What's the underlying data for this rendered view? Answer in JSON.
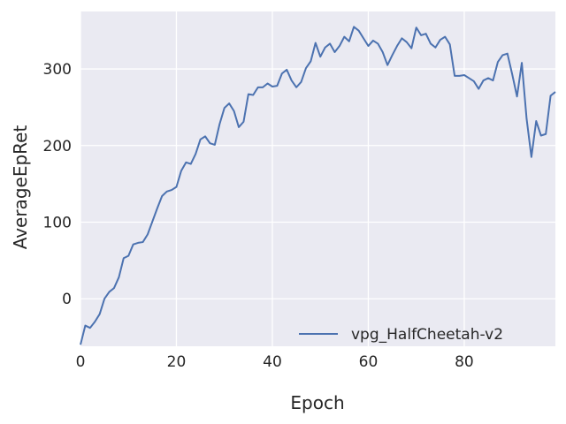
{
  "chart_data": {
    "type": "line",
    "xlabel": "Epoch",
    "ylabel": "AverageEpRet",
    "xlim": [
      0,
      99
    ],
    "ylim": [
      -62,
      375
    ],
    "x_ticks": [
      0,
      20,
      40,
      60,
      80
    ],
    "y_ticks": [
      0,
      100,
      200,
      300
    ],
    "grid": true,
    "background": "#eaeaf2",
    "legend_position": "lower-right",
    "series": [
      {
        "name": "vpg_HalfCheetah-v2",
        "color": "#4c72b0",
        "x": [
          0,
          1,
          2,
          3,
          4,
          5,
          6,
          7,
          8,
          9,
          10,
          11,
          12,
          13,
          14,
          15,
          16,
          17,
          18,
          19,
          20,
          21,
          22,
          23,
          24,
          25,
          26,
          27,
          28,
          29,
          30,
          31,
          32,
          33,
          34,
          35,
          36,
          37,
          38,
          39,
          40,
          41,
          42,
          43,
          44,
          45,
          46,
          47,
          48,
          49,
          50,
          51,
          52,
          53,
          54,
          55,
          56,
          57,
          58,
          59,
          60,
          61,
          62,
          63,
          64,
          65,
          66,
          67,
          68,
          69,
          70,
          71,
          72,
          73,
          74,
          75,
          76,
          77,
          78,
          79,
          80,
          81,
          82,
          83,
          84,
          85,
          86,
          87,
          88,
          89,
          90,
          91,
          92,
          93,
          94,
          95,
          96,
          97,
          98,
          99
        ],
        "y": [
          -60,
          -35,
          -38,
          -30,
          -20,
          0,
          9,
          14,
          28,
          53,
          56,
          71,
          73,
          74,
          84,
          101,
          118,
          134,
          140,
          142,
          146,
          167,
          178,
          176,
          189,
          208,
          212,
          203,
          201,
          228,
          249,
          255,
          245,
          224,
          231,
          267,
          266,
          276,
          276,
          281,
          277,
          278,
          294,
          299,
          285,
          276,
          283,
          301,
          310,
          334,
          316,
          328,
          333,
          322,
          330,
          342,
          336,
          355,
          350,
          340,
          330,
          337,
          333,
          322,
          305,
          318,
          330,
          340,
          335,
          327,
          354,
          344,
          346,
          333,
          328,
          338,
          342,
          332,
          291,
          291,
          292,
          288,
          284,
          274,
          285,
          288,
          285,
          309,
          318,
          320,
          293,
          264,
          308,
          235,
          185,
          232,
          213,
          215,
          265,
          270
        ]
      }
    ]
  }
}
